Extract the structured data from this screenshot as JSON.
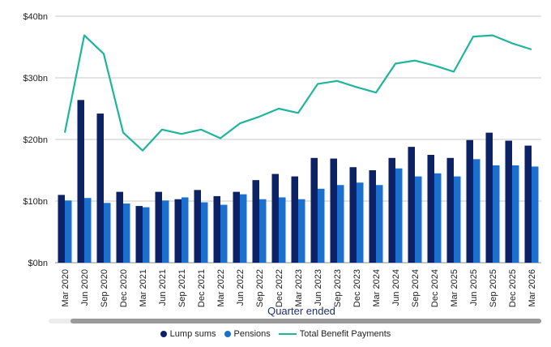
{
  "chart_data": {
    "type": "bar",
    "xlabel": "Quarter ended",
    "ylabel": "",
    "ylim": [
      0,
      40
    ],
    "yticks": [
      0,
      10,
      20,
      30,
      40
    ],
    "ytick_labels": [
      "$0bn",
      "$10bn",
      "$20bn",
      "$30bn",
      "$40bn"
    ],
    "grid": true,
    "legend_position": "bottom",
    "categories": [
      "Mar 2020",
      "Jun 2020",
      "Sep 2020",
      "Dec 2020",
      "Mar 2021",
      "Jun 2021",
      "Sep 2021",
      "Dec 2021",
      "Mar 2022",
      "Jun 2022",
      "Sep 2022",
      "Dec 2022",
      "Mar 2023",
      "Jun 2023",
      "Sep 2023",
      "Dec 2023",
      "Mar 2024",
      "Jun 2024",
      "Sep 2024",
      "Dec 2024",
      "Mar 2025",
      "Jun 2025",
      "Sep 2025",
      "Dec 2025",
      "Mar 2026"
    ],
    "series": [
      {
        "name": "Lump sums",
        "kind": "bar",
        "color": "#0c2265",
        "values": [
          11.0,
          26.4,
          24.2,
          11.5,
          9.2,
          11.5,
          10.3,
          11.8,
          10.8,
          11.5,
          13.4,
          14.4,
          14.0,
          17.0,
          16.9,
          15.5,
          15.0,
          17.0,
          18.8,
          17.5,
          17.0,
          19.9,
          21.1,
          19.8,
          19.0
        ]
      },
      {
        "name": "Pensions",
        "kind": "bar",
        "color": "#1a6fd0",
        "values": [
          10.1,
          10.5,
          9.7,
          9.6,
          9.0,
          10.1,
          10.6,
          9.8,
          9.4,
          11.1,
          10.3,
          10.6,
          10.3,
          12.0,
          12.6,
          13.0,
          12.6,
          15.3,
          14.0,
          14.5,
          14.0,
          16.8,
          15.8,
          15.8,
          15.6
        ]
      },
      {
        "name": "Total Benefit Payments",
        "kind": "line",
        "color": "#1fb59b",
        "values": [
          21.1,
          36.9,
          33.9,
          21.1,
          18.2,
          21.6,
          20.9,
          21.6,
          20.2,
          22.6,
          23.7,
          25.0,
          24.3,
          29.0,
          29.5,
          28.5,
          27.6,
          32.3,
          32.8,
          32.0,
          31.0,
          36.7,
          36.9,
          35.6,
          34.6
        ]
      }
    ]
  }
}
